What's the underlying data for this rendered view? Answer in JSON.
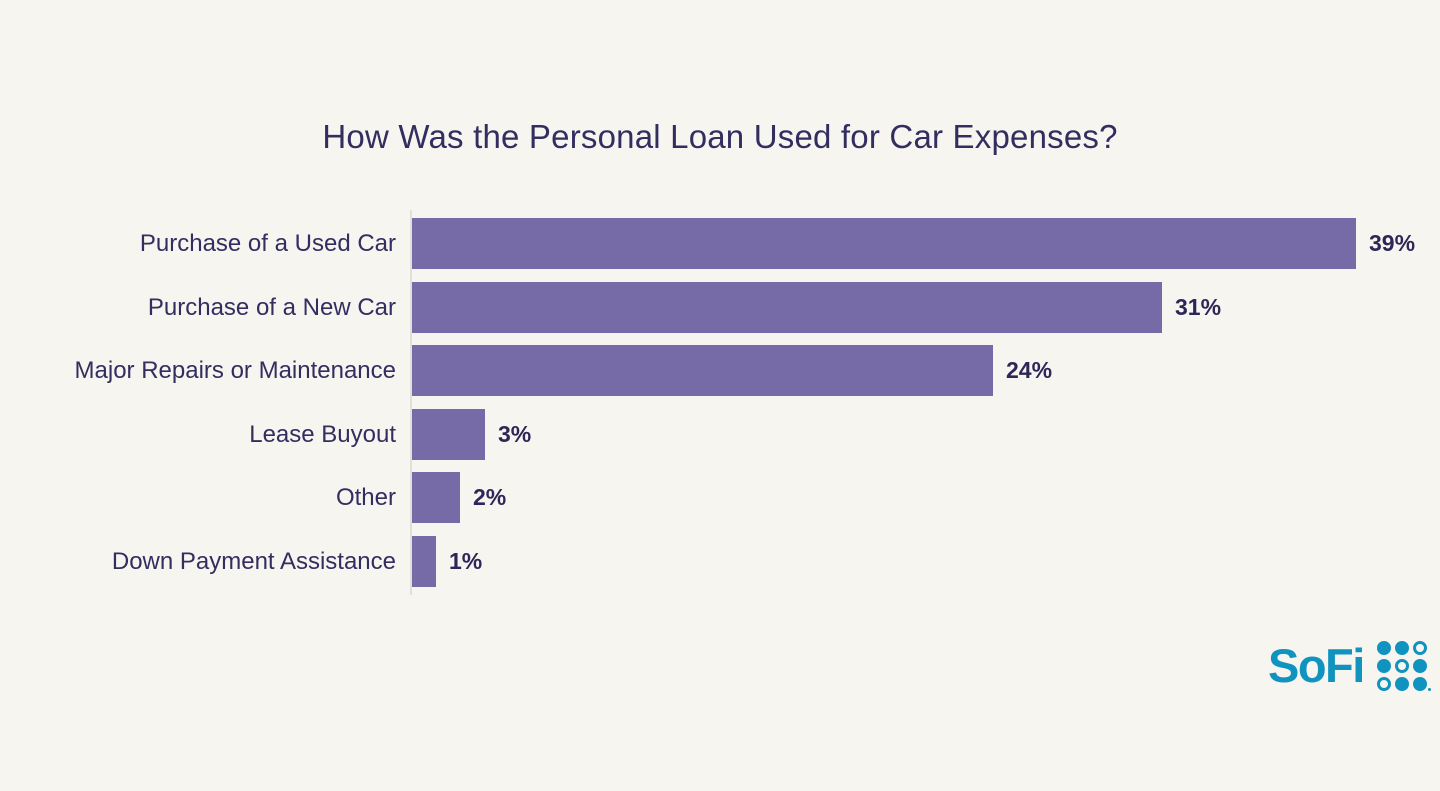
{
  "page": {
    "background_color": "#f7f5f0",
    "text_color": "#332e60",
    "value_text_color": "#2d2757"
  },
  "chart_data": {
    "type": "bar",
    "orientation": "horizontal",
    "title": "How Was the Personal Loan Used for Car Expenses?",
    "categories": [
      "Purchase of a Used Car",
      "Purchase of a New Car",
      "Major Repairs or Maintenance",
      "Lease Buyout",
      "Other",
      "Down Payment Assistance"
    ],
    "values": [
      39,
      31,
      24,
      3,
      2,
      1
    ],
    "value_labels": [
      "39%",
      "31%",
      "24%",
      "3%",
      "2%",
      "1%"
    ],
    "xlim": [
      0,
      39
    ],
    "bar_color": "#766aa7",
    "grid": false,
    "legend": false,
    "xlabel": "",
    "ylabel": ""
  },
  "branding": {
    "logo_text": "SoFi",
    "logo_color": "#1193bf",
    "logo_dot_pattern": [
      "filled",
      "filled",
      "ring",
      "filled",
      "ring",
      "filled",
      "ring",
      "filled",
      "filled"
    ]
  }
}
